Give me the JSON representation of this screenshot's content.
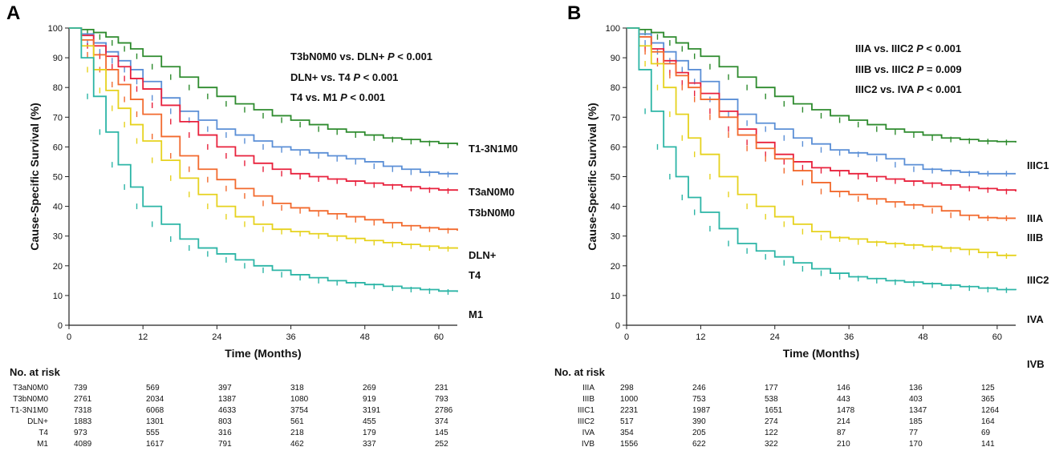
{
  "panels": [
    {
      "letter": "A",
      "stats": [
        {
          "text": "T3bN0M0 vs. DLN+ ",
          "p": "P",
          "rel": " < 0.001"
        },
        {
          "text": "DLN+ vs. T4 ",
          "p": "P",
          "rel": " < 0.001"
        },
        {
          "text": "T4 vs. M1 ",
          "p": "P",
          "rel": " < 0.001"
        }
      ],
      "risk_title": "No. at risk",
      "risk_times": [
        0,
        12,
        24,
        36,
        48,
        60
      ],
      "risk_rows": [
        {
          "label": "T3aN0M0",
          "values": [
            739,
            569,
            397,
            318,
            269,
            231
          ]
        },
        {
          "label": "T3bN0M0",
          "values": [
            2761,
            2034,
            1387,
            1080,
            919,
            793
          ]
        },
        {
          "label": "T1-3N1M0",
          "values": [
            7318,
            6068,
            4633,
            3754,
            3191,
            2786
          ]
        },
        {
          "label": "DLN+",
          "values": [
            1883,
            1301,
            803,
            561,
            455,
            374
          ]
        },
        {
          "label": "T4",
          "values": [
            973,
            555,
            316,
            218,
            179,
            145
          ]
        },
        {
          "label": "M1",
          "values": [
            4089,
            1617,
            791,
            462,
            337,
            252
          ]
        }
      ],
      "chart_data": {
        "type": "line",
        "title": "",
        "xlabel": "Time (Months)",
        "ylabel": "Cause-Specific Survival (%)",
        "xlim": [
          0,
          63
        ],
        "ylim": [
          0,
          100
        ],
        "xticks": [
          0,
          12,
          24,
          36,
          48,
          60
        ],
        "yticks": [
          0,
          10,
          20,
          30,
          40,
          50,
          60,
          70,
          80,
          90,
          100
        ],
        "x": [
          0,
          2,
          4,
          6,
          8,
          10,
          12,
          15,
          18,
          21,
          24,
          27,
          30,
          33,
          36,
          39,
          42,
          45,
          48,
          51,
          54,
          57,
          60,
          63
        ],
        "series": [
          {
            "name": "T1-3N1M0",
            "color": "#2e8b2e",
            "values": [
              100,
              99.5,
              98.5,
              97,
              95,
              93,
              90.5,
              87,
              83.5,
              80,
              77,
              74.5,
              72.5,
              70.5,
              69,
              67.5,
              66,
              65,
              64,
              63,
              62.5,
              61.8,
              61.2,
              60.5
            ]
          },
          {
            "name": "T3aN0M0",
            "color": "#5b8fd6",
            "values": [
              100,
              98,
              95,
              92,
              89,
              86,
              82,
              76.5,
              72,
              69,
              66,
              64,
              62,
              60,
              59,
              58,
              57,
              56,
              55,
              53.5,
              52.5,
              51.5,
              51,
              50.7
            ]
          },
          {
            "name": "T3bN0M0",
            "color": "#e8213c",
            "values": [
              100,
              97.5,
              94,
              90.5,
              87,
              83,
              79.5,
              74,
              68.5,
              64,
              60,
              57,
              54.5,
              52.5,
              51,
              50,
              49.2,
              48.5,
              47.8,
              47.2,
              46.6,
              46,
              45.5,
              45.2
            ]
          },
          {
            "name": "DLN+",
            "color": "#f26a2e",
            "values": [
              100,
              96,
              91,
              86,
              81,
              76,
              71,
              63.5,
              57,
              52.5,
              49,
              46,
              43.5,
              41,
              39.5,
              38.5,
              37.5,
              36.5,
              35.5,
              34.5,
              33.5,
              32.8,
              32.3,
              31.8
            ]
          },
          {
            "name": "T4",
            "color": "#e6d21e",
            "values": [
              100,
              94,
              86,
              79,
              73,
              67.5,
              62,
              55.5,
              49.5,
              44,
              40,
              36.5,
              34,
              32.3,
              31.5,
              30.8,
              30,
              29.2,
              28.5,
              27.8,
              27.2,
              26.6,
              26,
              25.7
            ]
          },
          {
            "name": "M1",
            "color": "#2cb5a6",
            "values": [
              100,
              90,
              77,
              65,
              54,
              46.5,
              40,
              34,
              29,
              26,
              24,
              22,
              20,
              18.5,
              17,
              16,
              15,
              14.3,
              13.7,
              13.1,
              12.5,
              12,
              11.5,
              11.2
            ]
          }
        ]
      }
    },
    {
      "letter": "B",
      "stats": [
        {
          "text": "IIIA vs. IIIC2  ",
          "p": "P",
          "rel": " < 0.001"
        },
        {
          "text": "IIIB vs. IIIC2  ",
          "p": "P",
          "rel": " = 0.009"
        },
        {
          "text": "IIIC2 vs. IVA  ",
          "p": "P",
          "rel": " < 0.001"
        }
      ],
      "risk_title": "No. at risk",
      "risk_times": [
        0,
        12,
        24,
        36,
        48,
        60
      ],
      "risk_rows": [
        {
          "label": "IIIA",
          "values": [
            298,
            246,
            177,
            146,
            136,
            125
          ]
        },
        {
          "label": "IIIB",
          "values": [
            1000,
            753,
            538,
            443,
            403,
            365
          ]
        },
        {
          "label": "IIIC1",
          "values": [
            2231,
            1987,
            1651,
            1478,
            1347,
            1264
          ]
        },
        {
          "label": "IIIC2",
          "values": [
            517,
            390,
            274,
            214,
            185,
            164
          ]
        },
        {
          "label": "IVA",
          "values": [
            354,
            205,
            122,
            87,
            77,
            69
          ]
        },
        {
          "label": "IVB",
          "values": [
            1556,
            622,
            322,
            210,
            170,
            141
          ]
        }
      ],
      "chart_data": {
        "type": "line",
        "title": "",
        "xlabel": "Time (Months)",
        "ylabel": "Cause-Specific Survival (%)",
        "xlim": [
          0,
          63
        ],
        "ylim": [
          0,
          100
        ],
        "xticks": [
          0,
          12,
          24,
          36,
          48,
          60
        ],
        "yticks": [
          0,
          10,
          20,
          30,
          40,
          50,
          60,
          70,
          80,
          90,
          100
        ],
        "x": [
          0,
          2,
          4,
          6,
          8,
          10,
          12,
          15,
          18,
          21,
          24,
          27,
          30,
          33,
          36,
          39,
          42,
          45,
          48,
          51,
          54,
          57,
          60,
          63
        ],
        "series": [
          {
            "name": "IIIC1",
            "color": "#2e8b2e",
            "values": [
              100,
              99.5,
              98.5,
              97,
              95,
              93,
              90.5,
              87,
              83.5,
              80,
              77,
              74.5,
              72.5,
              70.5,
              69,
              67.5,
              66,
              65,
              64,
              63,
              62.5,
              62,
              61.8,
              61.5
            ]
          },
          {
            "name": "IIIA",
            "color": "#5b8fd6",
            "values": [
              100,
              98,
              95,
              92,
              89,
              86,
              82,
              76,
              71,
              68,
              66,
              63,
              61,
              59,
              58,
              57.5,
              56,
              54,
              52.5,
              52,
              51.5,
              51,
              51,
              51
            ]
          },
          {
            "name": "IIIB",
            "color": "#e8213c",
            "values": [
              100,
              97,
              93,
              89,
              85,
              81.5,
              78,
              72,
              66,
              61.5,
              57.5,
              55,
              53,
              52,
              51,
              50,
              49.2,
              48.5,
              47.8,
              47.2,
              46.5,
              46,
              45.5,
              45
            ]
          },
          {
            "name": "IIIC2",
            "color": "#f26a2e",
            "values": [
              100,
              97,
              92,
              88,
              84,
              80,
              76,
              70,
              64,
              59.5,
              56,
              52,
              48,
              45,
              44,
              42.5,
              41.5,
              40.5,
              40,
              38.5,
              37,
              36.2,
              36,
              36
            ]
          },
          {
            "name": "IVA",
            "color": "#e6d21e",
            "values": [
              100,
              94,
              88,
              80,
              71,
              63,
              57.5,
              50,
              44,
              40,
              36.5,
              34,
              31.5,
              29.5,
              29,
              28,
              27.5,
              27,
              26.5,
              26,
              25.5,
              24.5,
              23.5,
              23.3
            ]
          },
          {
            "name": "IVB",
            "color": "#2cb5a6",
            "values": [
              100,
              86,
              72,
              60,
              50,
              43,
              38,
              32.5,
              27.5,
              25,
              23,
              21,
              19,
              17.5,
              16.3,
              15.7,
              15,
              14.5,
              14,
              13.5,
              13,
              12.5,
              12,
              11.8
            ]
          }
        ]
      }
    }
  ]
}
